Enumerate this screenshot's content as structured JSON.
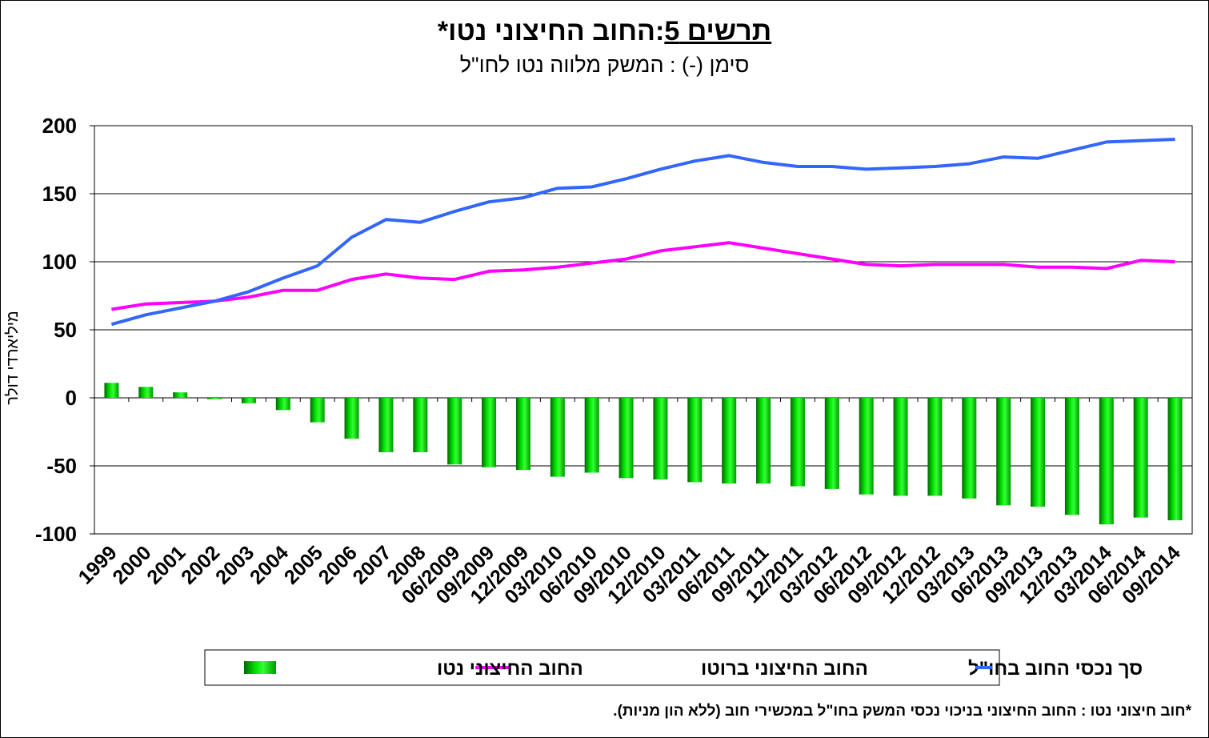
{
  "title_prefix": "תרשים 5",
  "title_main": ":החוב החיצוני נטו*",
  "subtitle": "סימן (-) : המשק מלווה נטו לחו\"ל",
  "footnote": "*חוב חיצוני נטו : החוב החיצוני בניכוי נכסי המשק בחו\"ל במכשירי חוב (ללא הון מניות).",
  "colors": {
    "bars": "#00cc00",
    "bars_dark": "#008000",
    "gross": "#ff00ff",
    "assets": "#3366ff"
  },
  "chart_data": {
    "type": "bar+line",
    "ylabel": "מיליארדי דולר",
    "ylim": [
      -100,
      200
    ],
    "yticks": [
      200,
      150,
      100,
      50,
      0,
      -50,
      -100
    ],
    "grid": true,
    "legend_position": "bottom",
    "categories": [
      "1999",
      "2000",
      "2001",
      "2002",
      "2003",
      "2004",
      "2005",
      "2006",
      "2007",
      "2008",
      "06/2009",
      "09/2009",
      "12/2009",
      "03/2010",
      "06/2010",
      "09/2010",
      "12/2010",
      "03/2011",
      "06/2011",
      "09/2011",
      "12/2011",
      "03/2012",
      "06/2012",
      "09/2012",
      "12/2012",
      "03/2013",
      "06/2013",
      "09/2013",
      "12/2013",
      "03/2014",
      "06/2014",
      "09/2014"
    ],
    "series": [
      {
        "name": "החוב החיצוני נטו",
        "kind": "bar",
        "values": [
          11,
          8,
          4,
          -1,
          -4,
          -9,
          -18,
          -30,
          -40,
          -40,
          -49,
          -51,
          -53,
          -58,
          -55,
          -59,
          -60,
          -62,
          -63,
          -63,
          -65,
          -67,
          -71,
          -72,
          -72,
          -74,
          -79,
          -80,
          -86,
          -93,
          -88,
          -90
        ]
      },
      {
        "name": "החוב החיצוני ברוטו",
        "kind": "line",
        "values": [
          65,
          69,
          70,
          71,
          74,
          79,
          79,
          87,
          91,
          88,
          87,
          93,
          94,
          96,
          99,
          102,
          108,
          111,
          114,
          110,
          106,
          102,
          98,
          97,
          98,
          98,
          98,
          96,
          96,
          95,
          101,
          100
        ]
      },
      {
        "name": "סך נכסי החוב בחו\"ל",
        "kind": "line",
        "values": [
          54,
          61,
          66,
          71,
          78,
          88,
          97,
          118,
          131,
          129,
          137,
          144,
          147,
          154,
          155,
          161,
          168,
          174,
          178,
          173,
          170,
          170,
          168,
          169,
          170,
          172,
          177,
          176,
          182,
          188,
          189,
          190
        ]
      }
    ]
  }
}
